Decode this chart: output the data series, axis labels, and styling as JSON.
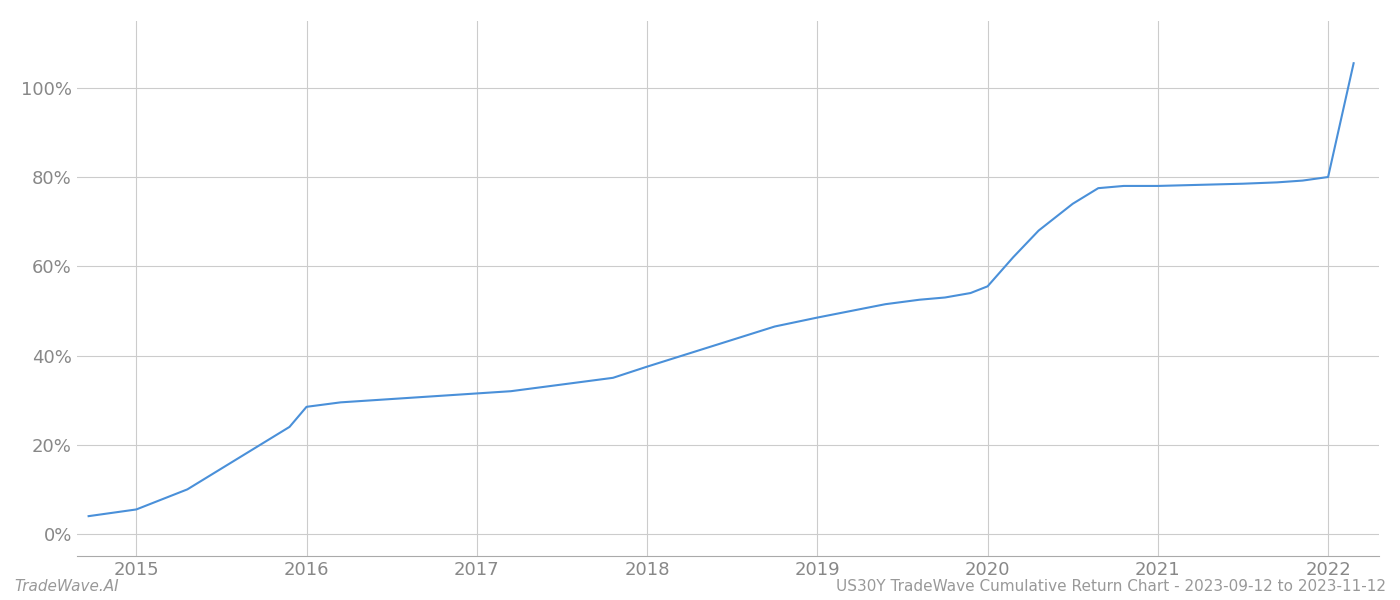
{
  "x_values": [
    2014.72,
    2015.0,
    2015.3,
    2015.6,
    2015.9,
    2016.0,
    2016.2,
    2016.4,
    2016.6,
    2016.8,
    2017.0,
    2017.2,
    2017.5,
    2017.8,
    2018.0,
    2018.25,
    2018.5,
    2018.75,
    2019.0,
    2019.2,
    2019.4,
    2019.6,
    2019.75,
    2019.9,
    2020.0,
    2020.15,
    2020.3,
    2020.5,
    2020.65,
    2020.8,
    2021.0,
    2021.2,
    2021.5,
    2021.7,
    2021.85,
    2022.0,
    2022.15
  ],
  "y_values": [
    4.0,
    5.5,
    10.0,
    17.0,
    24.0,
    28.5,
    29.5,
    30.0,
    30.5,
    31.0,
    31.5,
    32.0,
    33.5,
    35.0,
    37.5,
    40.5,
    43.5,
    46.5,
    48.5,
    50.0,
    51.5,
    52.5,
    53.0,
    54.0,
    55.5,
    62.0,
    68.0,
    74.0,
    77.5,
    78.0,
    78.0,
    78.2,
    78.5,
    78.8,
    79.2,
    80.0,
    105.5
  ],
  "line_color": "#4a90d9",
  "line_width": 1.5,
  "background_color": "#ffffff",
  "grid_color": "#cccccc",
  "x_ticks": [
    2015,
    2016,
    2017,
    2018,
    2019,
    2020,
    2021,
    2022
  ],
  "y_ticks": [
    0,
    20,
    40,
    60,
    80,
    100
  ],
  "y_labels": [
    "0%",
    "20%",
    "40%",
    "60%",
    "80%",
    "100%"
  ],
  "xlim": [
    2014.65,
    2022.3
  ],
  "ylim": [
    -5,
    115
  ],
  "bottom_left_text": "TradeWave.AI",
  "bottom_right_text": "US30Y TradeWave Cumulative Return Chart - 2023-09-12 to 2023-11-12",
  "tick_fontsize": 13,
  "footer_fontsize": 11,
  "footer_color": "#999999"
}
